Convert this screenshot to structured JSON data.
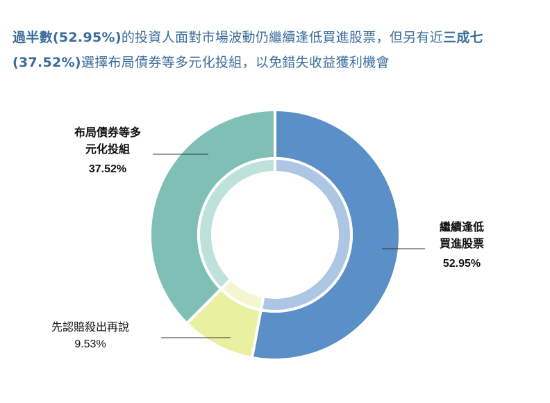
{
  "title": {
    "part1_bold": "過半數(52.95%)",
    "part2": "的投資人面對市場波動仍繼續逢低買進股票，但另有近",
    "part3_bold": "三成七",
    "part4_bold": "(37.52%)",
    "part5": "選擇布局債券等多元化投組，以免錯失收益獲利機會"
  },
  "chart_data": {
    "type": "pie",
    "donut": true,
    "start": "12 o'clock, clockwise",
    "slices": [
      {
        "label_lines": [
          "繼續逢低",
          "買進股票"
        ],
        "value": 52.95,
        "value_label": "52.95%",
        "color": "#5b8fc7",
        "inner_color": "#adc6e3",
        "label_bold": true
      },
      {
        "label_lines": [
          "先認賠殺出再說"
        ],
        "value": 9.53,
        "value_label": "9.53%",
        "color": "#e9f1a0",
        "inner_color": "#f3f7d0",
        "label_bold": false
      },
      {
        "label_lines": [
          "布局債券等多",
          "元化投組"
        ],
        "value": 37.52,
        "value_label": "37.52%",
        "color": "#7fbfb6",
        "inner_color": "#bfe1dc",
        "label_bold": true
      }
    ]
  }
}
